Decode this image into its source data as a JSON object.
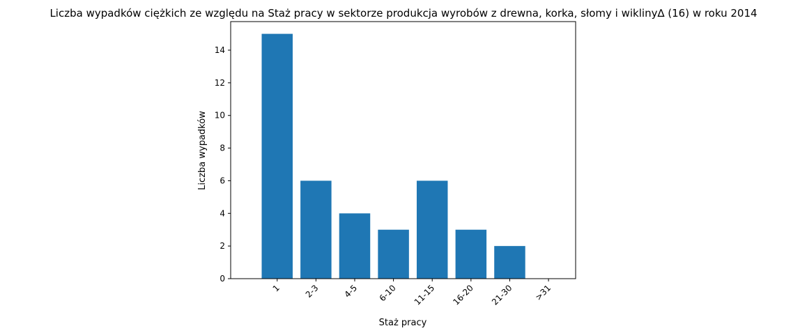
{
  "chart_data": {
    "type": "bar",
    "title": "Liczba wypadków ciężkich ze względu na Staż pracy w sektorze produkcja wyrobów z drewna, korka, słomy i wikliny∆ (16)  w roku 2014",
    "xlabel": "Staż pracy",
    "ylabel": "Liczba wypadków",
    "categories": [
      "1",
      "2-3",
      "4-5",
      "6-10",
      "11-15",
      "16-20",
      "21-30",
      ">31"
    ],
    "values": [
      15,
      6,
      4,
      3,
      6,
      3,
      2,
      0
    ],
    "ylim": [
      0,
      15.75
    ],
    "yticks": [
      0,
      2,
      4,
      6,
      8,
      10,
      12,
      14
    ],
    "bar_color": "#1f77b4",
    "grid": false,
    "x_tick_rotation": 45
  }
}
